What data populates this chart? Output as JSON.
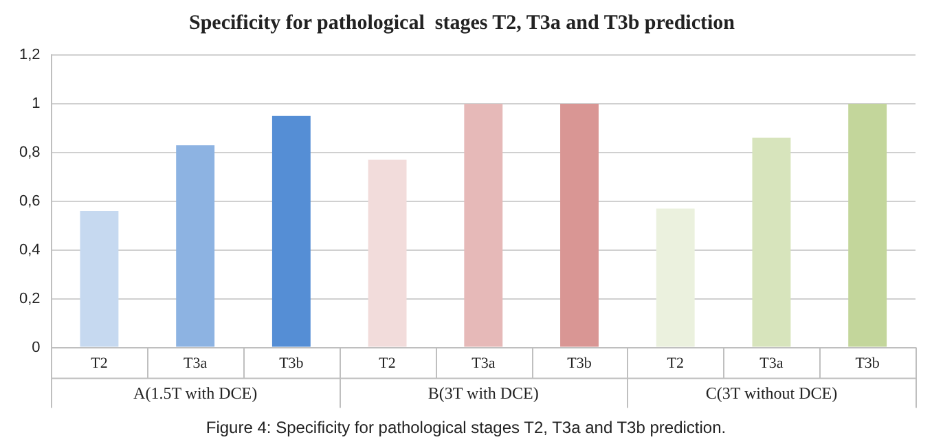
{
  "chart_data": {
    "type": "bar",
    "title": "Specificity for pathological  stages T2, T3a and T3b prediction",
    "categories": [
      "T2",
      "T3a",
      "T3b",
      "T2",
      "T3a",
      "T3b",
      "T2",
      "T3a",
      "T3b"
    ],
    "values": [
      0.56,
      0.83,
      0.95,
      0.77,
      1,
      1,
      0.57,
      0.86,
      1
    ],
    "colors": [
      "#c6d9f0",
      "#8db3e2",
      "#558ed5",
      "#f2dcdb",
      "#e6b9b8",
      "#d99694",
      "#ebf1de",
      "#d7e4bc",
      "#c3d69b"
    ],
    "ylim": [
      0,
      1.2
    ],
    "yticks": [
      0,
      {
        "value": 0.2,
        "label": "0,2"
      },
      {
        "value": 0.4,
        "label": "0,4"
      },
      {
        "value": 0.6,
        "label": "0,6"
      },
      {
        "value": 0.8,
        "label": "0,8"
      },
      1,
      {
        "value": 1.2,
        "label": "1,2"
      }
    ],
    "grid": "y",
    "annotations": [
      "A(1.5T with DCE)",
      "B(3T with DCE)",
      "C(3T without DCE)",
      "Figure 4: Specificity for pathological stages T2, T3a and T3b prediction."
    ]
  }
}
